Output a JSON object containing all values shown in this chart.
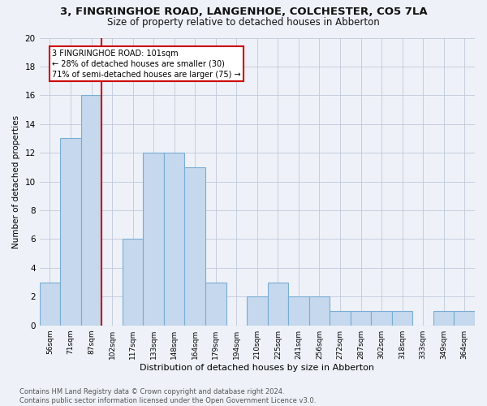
{
  "title": "3, FINGRINGHOE ROAD, LANGENHOE, COLCHESTER, CO5 7LA",
  "subtitle": "Size of property relative to detached houses in Abberton",
  "xlabel": "Distribution of detached houses by size in Abberton",
  "ylabel": "Number of detached properties",
  "categories": [
    "56sqm",
    "71sqm",
    "87sqm",
    "102sqm",
    "117sqm",
    "133sqm",
    "148sqm",
    "164sqm",
    "179sqm",
    "194sqm",
    "210sqm",
    "225sqm",
    "241sqm",
    "256sqm",
    "272sqm",
    "287sqm",
    "302sqm",
    "318sqm",
    "333sqm",
    "349sqm",
    "364sqm"
  ],
  "values": [
    3,
    13,
    16,
    0,
    6,
    12,
    12,
    11,
    3,
    0,
    2,
    3,
    2,
    2,
    1,
    1,
    1,
    1,
    0,
    1,
    1
  ],
  "bar_color": "#c5d8ed",
  "bar_edge_color": "#7aadd4",
  "vline_x_index": 2,
  "vline_color": "#cc0000",
  "annotation_line1": "3 FINGRINGHOE ROAD: 101sqm",
  "annotation_line2": "← 28% of detached houses are smaller (30)",
  "annotation_line3": "71% of semi-detached houses are larger (75) →",
  "annotation_box_color": "#ffffff",
  "annotation_box_edge": "#cc0000",
  "footer": "Contains HM Land Registry data © Crown copyright and database right 2024.\nContains public sector information licensed under the Open Government Licence v3.0.",
  "background_color": "#eef2f8",
  "ylim": [
    0,
    20
  ],
  "yticks": [
    0,
    2,
    4,
    6,
    8,
    10,
    12,
    14,
    16,
    18,
    20
  ]
}
